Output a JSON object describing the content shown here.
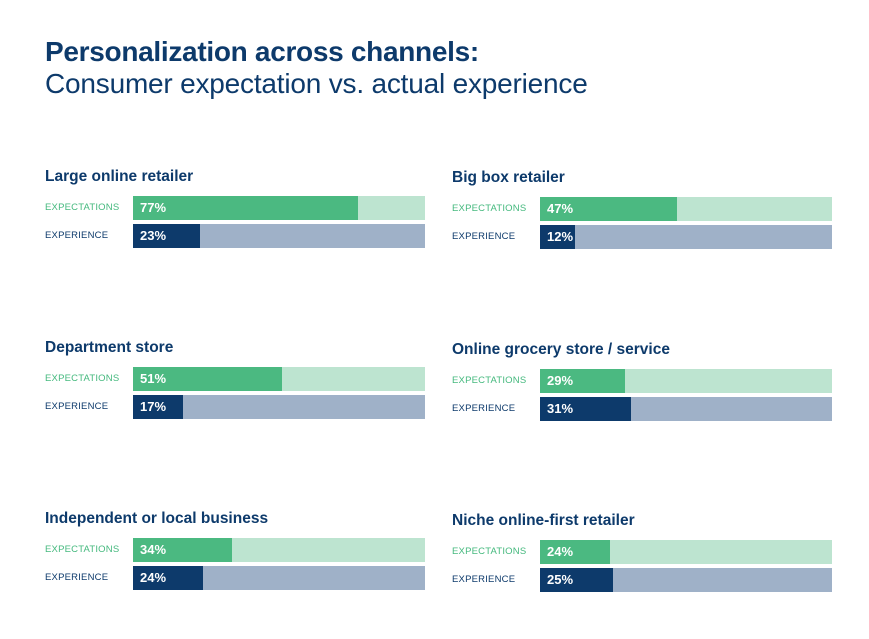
{
  "title": "Personalization across channels:",
  "subtitle": "Consumer expectation vs. actual experience",
  "row_labels": {
    "expectations": "EXPECTATIONS",
    "experience": "EXPERIENCE"
  },
  "colors": {
    "expectation_fill": "#4bb981",
    "expectation_track": "#bde4d0",
    "experience_fill": "#0d3a6b",
    "experience_track": "#9fb1c8",
    "title": "#0d3a6b"
  },
  "chart_data": {
    "type": "bar",
    "orientation": "horizontal",
    "unit": "%",
    "xlim": [
      0,
      100
    ],
    "series_labels": [
      "EXPECTATIONS",
      "EXPERIENCE"
    ],
    "panels": [
      {
        "name": "Large online retailer",
        "expectations": 77,
        "experience": 23,
        "expectations_label": "77%",
        "experience_label": "23%"
      },
      {
        "name": "Big box retailer",
        "expectations": 47,
        "experience": 12,
        "expectations_label": "47%",
        "experience_label": "12%"
      },
      {
        "name": "Department store",
        "expectations": 51,
        "experience": 17,
        "expectations_label": "51%",
        "experience_label": "17%"
      },
      {
        "name": "Online grocery store / service",
        "expectations": 29,
        "experience": 31,
        "expectations_label": "29%",
        "experience_label": "31%"
      },
      {
        "name": "Independent or local business",
        "expectations": 34,
        "experience": 24,
        "expectations_label": "34%",
        "experience_label": "24%"
      },
      {
        "name": "Niche online-first retailer",
        "expectations": 24,
        "experience": 25,
        "expectations_label": "24%",
        "experience_label": "25%"
      }
    ]
  }
}
